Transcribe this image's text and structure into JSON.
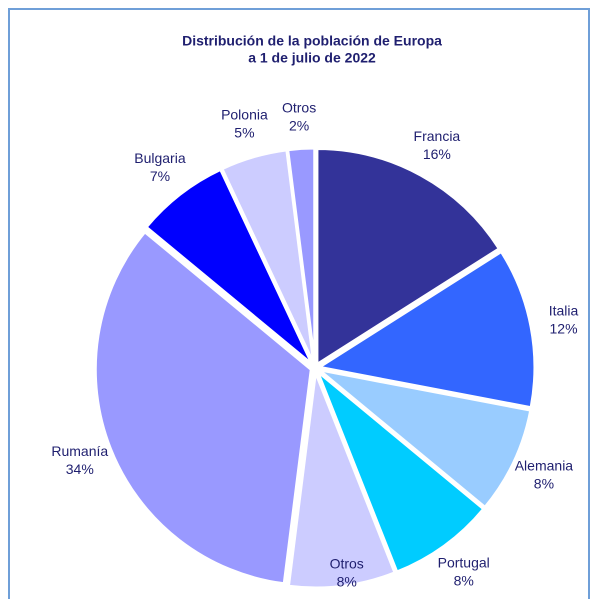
{
  "chart_data": {
    "type": "pie",
    "title": [
      "Distribución de la población de Europa",
      "a 1 de julio de 2022"
    ],
    "categories": [
      "Francia",
      "Italia",
      "Alemania",
      "Portugal",
      "Otros",
      "Rumanía",
      "Bulgaria",
      "Polonia",
      "Otros"
    ],
    "values": [
      16,
      12,
      8,
      8,
      8,
      34,
      7,
      5,
      2
    ],
    "value_labels": [
      "16%",
      "12%",
      "8%",
      "8%",
      "8%",
      "34%",
      "7%",
      "5%",
      "2%"
    ],
    "colors": [
      "#333399",
      "#3366ff",
      "#99ccff",
      "#00ccff",
      "#ccccff",
      "#9999ff",
      "#0000ff",
      "#ccccff",
      "#9999ff"
    ]
  }
}
